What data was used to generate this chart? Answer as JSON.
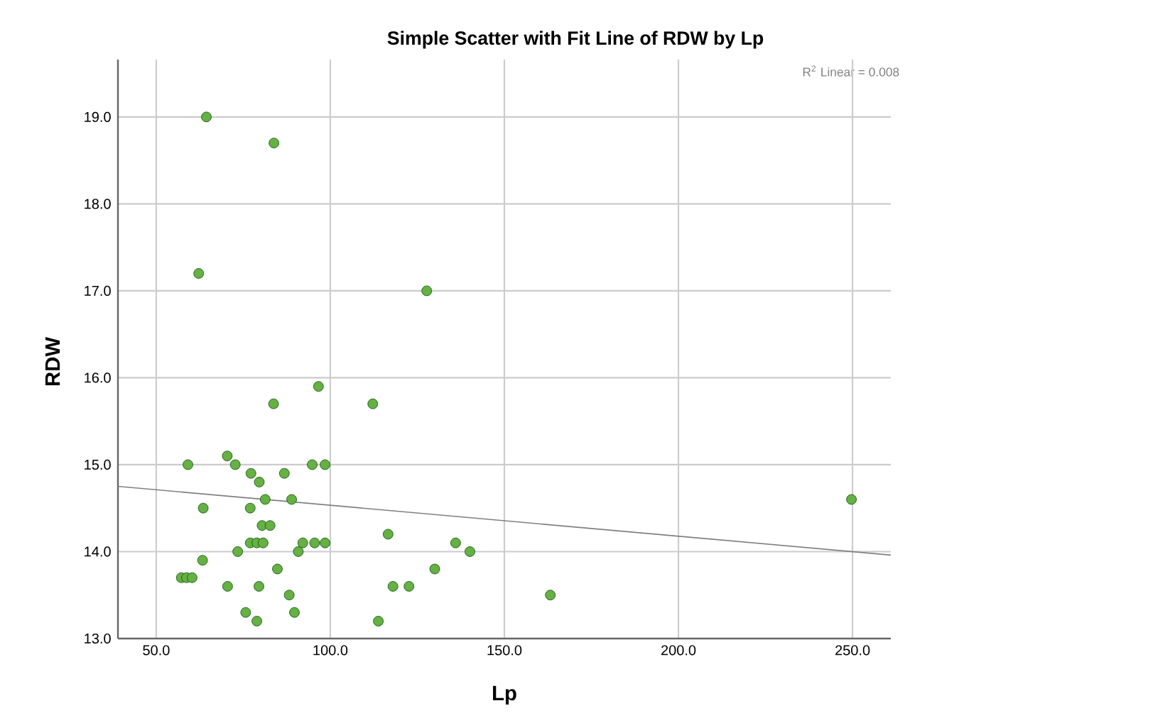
{
  "chart_data": {
    "type": "scatter",
    "title": "Simple Scatter with Fit Line of RDW by Lp",
    "xlabel": "Lp",
    "ylabel": "RDW",
    "annotations": [
      "R$^{2}$ Linear = 0.008"
    ],
    "xlim": [
      39,
      261
    ],
    "ylim": [
      13,
      19.66
    ],
    "xticks": [
      {
        "value": 50,
        "label": "50.0"
      },
      {
        "value": 100,
        "label": "100.0"
      },
      {
        "value": 150,
        "label": "150.0"
      },
      {
        "value": 200,
        "label": "200.0"
      },
      {
        "value": 250,
        "label": "250.0"
      }
    ],
    "yticks": [
      {
        "value": 13,
        "label": "13.0"
      },
      {
        "value": 14,
        "label": "14.0"
      },
      {
        "value": 15,
        "label": "15.0"
      },
      {
        "value": 16,
        "label": "16.0"
      },
      {
        "value": 17,
        "label": "17.0"
      },
      {
        "value": 18,
        "label": "18.0"
      },
      {
        "value": 19,
        "label": "19.0"
      }
    ],
    "grid": true,
    "marker": "circle",
    "series": [
      {
        "color": "#66b044",
        "x": [
          59.1,
          70.4,
          72.7,
          77.2,
          79.6,
          86.8,
          94.8,
          98.5,
          81.3,
          88.9,
          63.5,
          77.0,
          80.4,
          82.7,
          77.0,
          78.9,
          80.7,
          92.1,
          95.5,
          98.5,
          73.4,
          90.8,
          63.3,
          57.2,
          58.7,
          60.3,
          84.8,
          70.5,
          79.5,
          88.2,
          75.7,
          89.7,
          78.9,
          116.6,
          136.0,
          140.1,
          130.0,
          118.0,
          122.6,
          113.8,
          163.2,
          64.4,
          83.8,
          62.2,
          127.7,
          83.7,
          96.6,
          112.2,
          249.7
        ],
        "values": [
          15.0,
          15.1,
          15.0,
          14.9,
          14.8,
          14.9,
          15.0,
          15.0,
          14.6,
          14.6,
          14.5,
          14.5,
          14.3,
          14.3,
          14.1,
          14.1,
          14.1,
          14.1,
          14.1,
          14.1,
          14.0,
          14.0,
          13.9,
          13.7,
          13.7,
          13.7,
          13.8,
          13.6,
          13.6,
          13.5,
          13.3,
          13.3,
          13.2,
          14.2,
          14.1,
          14.0,
          13.8,
          13.6,
          13.6,
          13.2,
          13.5,
          19.0,
          18.7,
          17.2,
          17.0,
          15.7,
          15.9,
          15.7,
          14.6
        ]
      },
      {
        "type": "line",
        "color": "#808080",
        "marker": "none",
        "x": [
          39,
          261
        ],
        "values": [
          14.75,
          13.96
        ]
      }
    ]
  }
}
